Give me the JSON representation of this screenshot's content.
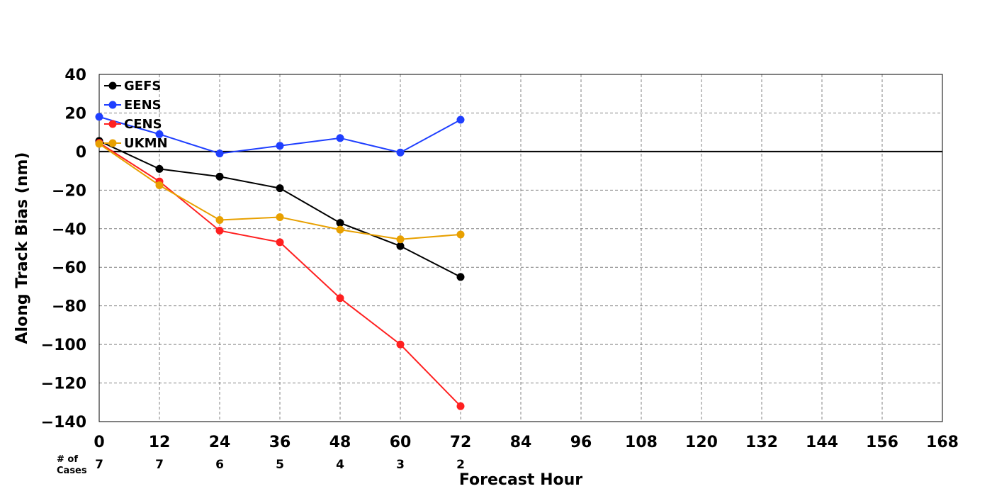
{
  "chart_data": {
    "type": "line",
    "xlabel": "Forecast Hour",
    "ylabel": "Along Track Bias (nm)",
    "xlim": [
      0,
      168
    ],
    "ylim": [
      -140,
      40
    ],
    "xticks": [
      "0",
      "12",
      "24",
      "36",
      "48",
      "60",
      "72",
      "84",
      "96",
      "108",
      "120",
      "132",
      "144",
      "156",
      "168"
    ],
    "yticks": [
      "40",
      "20",
      "0",
      "−20",
      "−40",
      "−60",
      "−80",
      "−100",
      "−120",
      "−140"
    ],
    "grid": true,
    "legend_position": "top-left",
    "x": [
      0,
      12,
      24,
      36,
      48,
      60,
      72
    ],
    "series": [
      {
        "name": "GEFS",
        "color": "#000000",
        "values": [
          5.5,
          -9,
          -13,
          -19,
          -37,
          -49,
          -65
        ]
      },
      {
        "name": "EENS",
        "color": "#1f3fff",
        "values": [
          18,
          9,
          -1,
          3,
          7,
          -0.5,
          16.5
        ]
      },
      {
        "name": "CENS",
        "color": "#ff2020",
        "values": [
          4.5,
          -15.5,
          -41,
          -47,
          -76,
          -100,
          -132
        ]
      },
      {
        "name": "UKMN",
        "color": "#e8a000",
        "values": [
          4,
          -17.5,
          -35.5,
          -34,
          -40.5,
          -45.5,
          -43
        ]
      }
    ],
    "cases": {
      "label_line1": "# of",
      "label_line2": "Cases",
      "x": [
        0,
        12,
        24,
        36,
        48,
        60,
        72
      ],
      "values": [
        "7",
        "7",
        "6",
        "5",
        "4",
        "3",
        "2"
      ]
    }
  }
}
